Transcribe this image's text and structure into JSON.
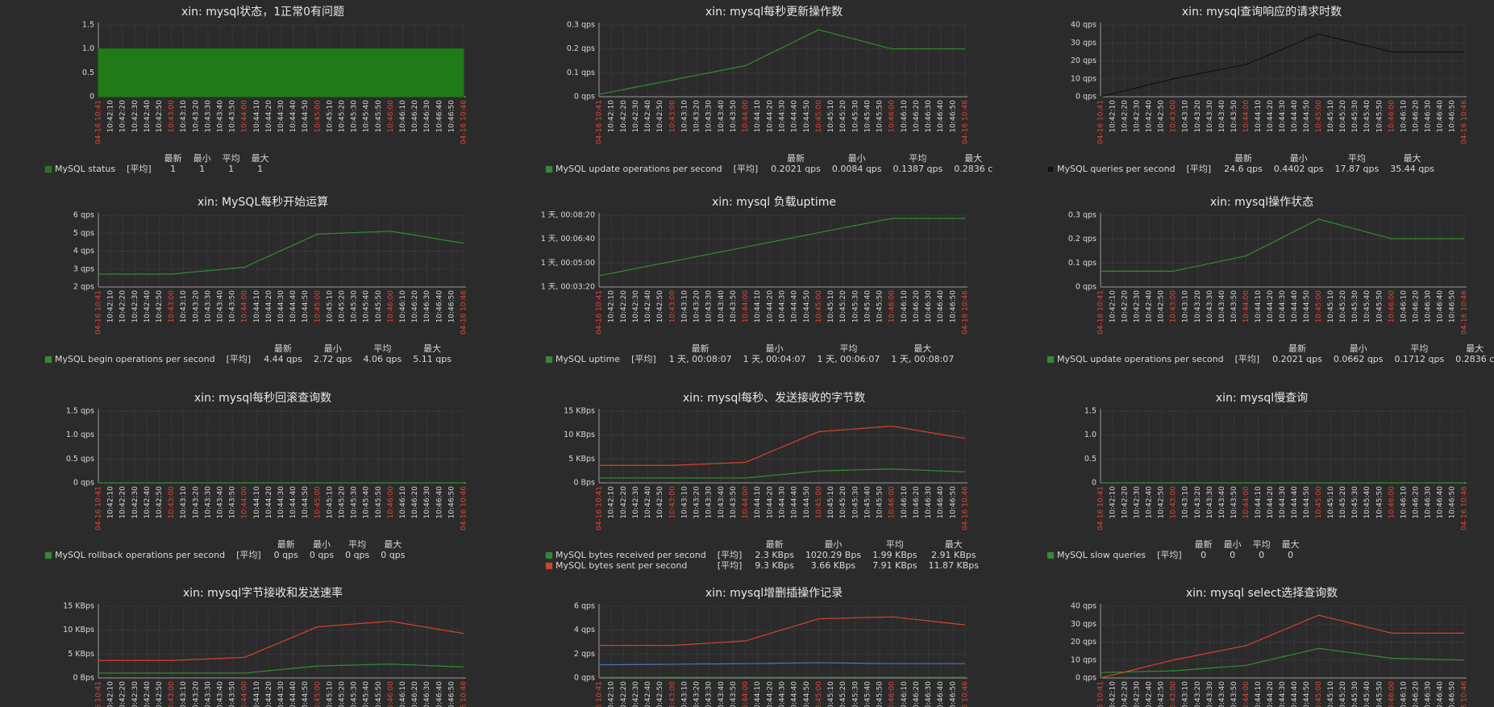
{
  "time_axis": [
    "04-16 10:41",
    "10:42:10",
    "10:42:20",
    "10:42:30",
    "10:42:40",
    "10:42:50",
    "10:43:00",
    "10:43:10",
    "10:43:20",
    "10:43:30",
    "10:43:40",
    "10:43:50",
    "10:44:00",
    "10:44:10",
    "10:44:20",
    "10:44:30",
    "10:44:40",
    "10:44:50",
    "10:45:00",
    "10:45:10",
    "10:45:20",
    "10:45:30",
    "10:45:40",
    "10:45:50",
    "10:46:00",
    "10:46:10",
    "10:46:20",
    "10:46:30",
    "10:46:40",
    "10:46:50",
    "04-16 10:46"
  ],
  "chart_data": [
    {
      "type": "area",
      "title": "xin: mysql状态，1正常0有问题",
      "ylim": [
        0,
        1.5
      ],
      "yticks": [
        0,
        0.5,
        {
          "value": 1,
          "label": "1.0"
        },
        {
          "value": 1.5,
          "label": "1.5"
        }
      ],
      "grid": true,
      "legend_headers": [
        "最新",
        "最小",
        "平均",
        "最大"
      ],
      "series": [
        {
          "name": "MySQL status",
          "color": "#1f7a17",
          "func": "[平均]",
          "stats": [
            "1",
            "1",
            "1",
            "1"
          ],
          "values": [
            1,
            1,
            1,
            1,
            1,
            1,
            1,
            1,
            1,
            1,
            1,
            1,
            1,
            1,
            1,
            1,
            1,
            1,
            1,
            1,
            1,
            1,
            1,
            1,
            1,
            1,
            1,
            1,
            1,
            1,
            1
          ]
        }
      ]
    },
    {
      "type": "line",
      "title": "xin: mysql每秒更新操作数",
      "ylim": [
        0,
        0.3
      ],
      "yticks": [
        {
          "value": 0,
          "label": "0 qps"
        },
        {
          "value": 0.1,
          "label": "0.1 qps"
        },
        {
          "value": 0.2,
          "label": "0.2 qps"
        },
        {
          "value": 0.3,
          "label": "0.3 qps"
        }
      ],
      "grid": true,
      "legend_headers": [
        "最新",
        "最小",
        "平均",
        "最大"
      ],
      "series": [
        {
          "name": "MySQL update operations per second",
          "color": "#2f8f2f",
          "func": "[平均]",
          "stats": [
            "0.2021 qps",
            "0.0084 qps",
            "0.1387 qps",
            "0.2836 c"
          ],
          "values": [
            0.01,
            0.02,
            0.03,
            0.04,
            0.05,
            0.06,
            0.07,
            0.08,
            0.09,
            0.1,
            0.11,
            0.12,
            0.13,
            0.155,
            0.18,
            0.205,
            0.23,
            0.255,
            0.28,
            0.267,
            0.253,
            0.24,
            0.227,
            0.213,
            0.2,
            0.2,
            0.2,
            0.2,
            0.2,
            0.2,
            0.2
          ]
        }
      ]
    },
    {
      "type": "line",
      "title": "xin: mysql查询响应的请求时数",
      "ylim": [
        0,
        40
      ],
      "yticks": [
        {
          "value": 0,
          "label": "0 qps"
        },
        {
          "value": 10,
          "label": "10 qps"
        },
        {
          "value": 20,
          "label": "20 qps"
        },
        {
          "value": 30,
          "label": "30 qps"
        },
        {
          "value": 40,
          "label": "40 qps"
        }
      ],
      "grid": true,
      "legend_headers": [
        "最新",
        "最小",
        "平均",
        "最大"
      ],
      "series": [
        {
          "name": "MySQL queries per second",
          "color": "#111111",
          "func": "[平均]",
          "stats": [
            "24.6 qps",
            "0.4402 qps",
            "17.87 qps",
            "35.44 qps"
          ],
          "values": [
            0,
            1.7,
            3.3,
            5,
            6.7,
            8.3,
            10,
            11.3,
            12.7,
            14,
            15.3,
            16.7,
            18,
            20.8,
            23.7,
            26.5,
            29.3,
            32.2,
            35,
            33.3,
            31.7,
            30,
            28.3,
            26.7,
            25,
            25,
            25,
            25,
            25,
            25,
            25
          ]
        }
      ]
    },
    {
      "type": "line",
      "title": "xin: MySQL每秒开始运算",
      "ylim": [
        2,
        6
      ],
      "yticks": [
        {
          "value": 2,
          "label": "2 qps"
        },
        {
          "value": 3,
          "label": "3 qps"
        },
        {
          "value": 4,
          "label": "4 qps"
        },
        {
          "value": 5,
          "label": "5 qps"
        },
        {
          "value": 6,
          "label": "6 qps"
        }
      ],
      "grid": true,
      "legend_headers": [
        "最新",
        "最小",
        "平均",
        "最大"
      ],
      "series": [
        {
          "name": "MySQL begin operations per second",
          "color": "#2f8f2f",
          "func": "[平均]",
          "stats": [
            "4.44 qps",
            "2.72 qps",
            "4.06 qps",
            "5.11 qps"
          ],
          "values": [
            2.72,
            2.72,
            2.72,
            2.72,
            2.72,
            2.72,
            2.72,
            2.78,
            2.85,
            2.91,
            2.97,
            3.04,
            3.1,
            3.41,
            3.72,
            4.03,
            4.33,
            4.64,
            4.95,
            4.98,
            5,
            5.03,
            5.06,
            5.08,
            5.11,
            5,
            4.89,
            4.78,
            4.66,
            4.55,
            4.44
          ]
        }
      ]
    },
    {
      "type": "line",
      "title": "xin: mysql 负载uptime",
      "ylim": [
        86600,
        86900
      ],
      "yticks": [
        {
          "value": 86600,
          "label": "1 天, 00:03:20"
        },
        {
          "value": 86700,
          "label": "1 天, 00:05:00"
        },
        {
          "value": 86800,
          "label": "1 天, 00:06:40"
        },
        {
          "value": 86900,
          "label": "1 天, 00:08:20"
        }
      ],
      "grid": true,
      "legend_headers": [
        "最新",
        "最小",
        "平均",
        "最大"
      ],
      "series": [
        {
          "name": "MySQL uptime",
          "color": "#2f8f2f",
          "func": "[平均]",
          "stats": [
            "1 天, 00:08:07",
            "1 天, 00:04:07",
            "1 天, 00:06:07",
            "1 天, 00:08:07"
          ],
          "values": [
            86647,
            86657,
            86667,
            86677,
            86687,
            86697,
            86707,
            86717,
            86727,
            86737,
            86747,
            86757,
            86767,
            86777,
            86787,
            86797,
            86807,
            86817,
            86827,
            86837,
            86847,
            86857,
            86867,
            86877,
            86887,
            86887,
            86887,
            86887,
            86887,
            86887,
            86887
          ]
        }
      ]
    },
    {
      "type": "line",
      "title": "xin: mysql操作状态",
      "ylim": [
        0,
        0.3
      ],
      "yticks": [
        {
          "value": 0,
          "label": "0 qps"
        },
        {
          "value": 0.1,
          "label": "0.1 qps"
        },
        {
          "value": 0.2,
          "label": "0.2 qps"
        },
        {
          "value": 0.3,
          "label": "0.3 qps"
        }
      ],
      "grid": true,
      "legend_headers": [
        "最新",
        "最小",
        "平均",
        "最大"
      ],
      "series": [
        {
          "name": "MySQL update operations per second",
          "color": "#2f8f2f",
          "func": "[平均]",
          "stats": [
            "0.2021 qps",
            "0.0662 qps",
            "0.1712 qps",
            "0.2836 c"
          ],
          "values": [
            0.0662,
            0.0662,
            0.0662,
            0.0662,
            0.0662,
            0.0662,
            0.0662,
            0.077,
            0.087,
            0.098,
            0.109,
            0.119,
            0.13,
            0.156,
            0.181,
            0.207,
            0.233,
            0.258,
            0.2836,
            0.27,
            0.256,
            0.243,
            0.229,
            0.216,
            0.2021,
            0.2021,
            0.2021,
            0.2021,
            0.2021,
            0.2021,
            0.2021
          ]
        }
      ]
    },
    {
      "type": "line",
      "title": "xin: mysql每秒回滚查询数",
      "ylim": [
        0,
        1.5
      ],
      "yticks": [
        {
          "value": 0,
          "label": "0 qps"
        },
        {
          "value": 0.5,
          "label": "0.5 qps"
        },
        {
          "value": 1,
          "label": "1.0 qps"
        },
        {
          "value": 1.5,
          "label": "1.5 qps"
        }
      ],
      "grid": true,
      "legend_headers": [
        "最新",
        "最小",
        "平均",
        "最大"
      ],
      "series": [
        {
          "name": "MySQL rollback operations per second",
          "color": "#2f8f2f",
          "func": "[平均]",
          "stats": [
            "0 qps",
            "0 qps",
            "0 qps",
            "0 qps"
          ],
          "values": [
            0,
            0,
            0,
            0,
            0,
            0,
            0,
            0,
            0,
            0,
            0,
            0,
            0,
            0,
            0,
            0,
            0,
            0,
            0,
            0,
            0,
            0,
            0,
            0,
            0,
            0,
            0,
            0,
            0,
            0,
            0
          ]
        }
      ]
    },
    {
      "type": "line",
      "title": "xin: mysql每秒、发送接收的字节数",
      "ylim": [
        0,
        15000
      ],
      "yticks": [
        {
          "value": 0,
          "label": "0 Bps"
        },
        {
          "value": 5000,
          "label": "5 KBps"
        },
        {
          "value": 10000,
          "label": "10 KBps"
        },
        {
          "value": 15000,
          "label": "15 KBps"
        }
      ],
      "grid": true,
      "legend_headers": [
        "最新",
        "最小",
        "平均",
        "最大"
      ],
      "series": [
        {
          "name": "MySQL bytes received per second",
          "color": "#2f8f2f",
          "func": "[平均]",
          "stats": [
            "2.3 KBps",
            "1020.29 Bps",
            "1.99 KBps",
            "2.91 KBps"
          ],
          "values": [
            1020,
            1020,
            1020,
            1020,
            1020,
            1020,
            1020,
            1020,
            1020,
            1020,
            1020,
            1020,
            1020,
            1267,
            1513,
            1760,
            2007,
            2253,
            2500,
            2568,
            2637,
            2705,
            2773,
            2842,
            2910,
            2808,
            2707,
            2605,
            2503,
            2402,
            2300
          ]
        },
        {
          "name": "MySQL bytes sent per second",
          "color": "#d9412c",
          "func": "[平均]",
          "stats": [
            "9.3 KBps",
            "3.66 KBps",
            "7.91 KBps",
            "11.87 KBps"
          ],
          "values": [
            3660,
            3660,
            3660,
            3660,
            3660,
            3660,
            3660,
            3767,
            3873,
            3980,
            4087,
            4193,
            4300,
            5367,
            6433,
            7500,
            8567,
            9633,
            10700,
            10895,
            11090,
            11285,
            11480,
            11675,
            11870,
            11442,
            11013,
            10585,
            10157,
            9728,
            9300
          ]
        }
      ]
    },
    {
      "type": "line",
      "title": "xin: mysql慢查询",
      "ylim": [
        0,
        1.5
      ],
      "yticks": [
        0,
        0.5,
        {
          "value": 1,
          "label": "1.0"
        },
        {
          "value": 1.5,
          "label": "1.5"
        }
      ],
      "grid": true,
      "legend_headers": [
        "最新",
        "最小",
        "平均",
        "最大"
      ],
      "series": [
        {
          "name": "MySQL slow queries",
          "color": "#2f8f2f",
          "func": "[平均]",
          "stats": [
            "0",
            "0",
            "0",
            "0"
          ],
          "values": [
            0,
            0,
            0,
            0,
            0,
            0,
            0,
            0,
            0,
            0,
            0,
            0,
            0,
            0,
            0,
            0,
            0,
            0,
            0,
            0,
            0,
            0,
            0,
            0,
            0,
            0,
            0,
            0,
            0,
            0,
            0
          ]
        }
      ]
    },
    {
      "type": "line",
      "title": "xin: mysql字节接收和发送速率",
      "ylim": [
        0,
        15000
      ],
      "yticks": [
        {
          "value": 0,
          "label": "0 Bps"
        },
        {
          "value": 5000,
          "label": "5 KBps"
        },
        {
          "value": 10000,
          "label": "10 KBps"
        },
        {
          "value": 15000,
          "label": "15 KBps"
        }
      ],
      "grid": true,
      "series": [
        {
          "color": "#2f8f2f",
          "values": [
            1020,
            1020,
            1020,
            1020,
            1020,
            1020,
            1020,
            1020,
            1020,
            1020,
            1020,
            1020,
            1020,
            1267,
            1513,
            1760,
            2007,
            2253,
            2500,
            2568,
            2637,
            2705,
            2773,
            2842,
            2910,
            2808,
            2707,
            2605,
            2503,
            2402,
            2300
          ]
        },
        {
          "color": "#d9412c",
          "values": [
            3660,
            3660,
            3660,
            3660,
            3660,
            3660,
            3660,
            3767,
            3873,
            3980,
            4087,
            4193,
            4300,
            5367,
            6433,
            7500,
            8567,
            9633,
            10700,
            10895,
            11090,
            11285,
            11480,
            11675,
            11870,
            11442,
            11013,
            10585,
            10157,
            9728,
            9300
          ]
        }
      ]
    },
    {
      "type": "line",
      "title": "xin: mysql增删插操作记录",
      "ylim": [
        0,
        6
      ],
      "yticks": [
        {
          "value": 0,
          "label": "0 qps"
        },
        {
          "value": 2,
          "label": "2 qps"
        },
        {
          "value": 4,
          "label": "4 qps"
        },
        {
          "value": 6,
          "label": "6 qps"
        }
      ],
      "grid": true,
      "series": [
        {
          "color": "#2f8f2f",
          "values": [
            0.05,
            0.05,
            0.05,
            0.05,
            0.05,
            0.05,
            0.05,
            0.05,
            0.05,
            0.05,
            0.05,
            0.05,
            0.05,
            0.05,
            0.05,
            0.05,
            0.05,
            0.05,
            0.05,
            0.05,
            0.05,
            0.05,
            0.05,
            0.05,
            0.05,
            0.05,
            0.05,
            0.05,
            0.05,
            0.05,
            0.05
          ]
        },
        {
          "color": "#4a78b0",
          "values": [
            1.1,
            1.11,
            1.12,
            1.12,
            1.13,
            1.14,
            1.15,
            1.16,
            1.17,
            1.17,
            1.18,
            1.19,
            1.2,
            1.21,
            1.22,
            1.24,
            1.25,
            1.26,
            1.27,
            1.26,
            1.25,
            1.24,
            1.22,
            1.21,
            1.2,
            1.2,
            1.2,
            1.2,
            1.2,
            1.2,
            1.2
          ]
        },
        {
          "color": "#d9412c",
          "values": [
            2.72,
            2.72,
            2.72,
            2.72,
            2.72,
            2.72,
            2.72,
            2.78,
            2.85,
            2.91,
            2.97,
            3.04,
            3.1,
            3.41,
            3.72,
            4.03,
            4.33,
            4.64,
            4.95,
            4.98,
            5,
            5.03,
            5.06,
            5.08,
            5.11,
            5,
            4.89,
            4.78,
            4.66,
            4.55,
            4.44
          ]
        }
      ]
    },
    {
      "type": "line",
      "title": "xin: mysql select选择查询数",
      "ylim": [
        0,
        40
      ],
      "yticks": [
        {
          "value": 0,
          "label": "0 qps"
        },
        {
          "value": 10,
          "label": "10 qps"
        },
        {
          "value": 20,
          "label": "20 qps"
        },
        {
          "value": 30,
          "label": "30 qps"
        },
        {
          "value": 40,
          "label": "40 qps"
        }
      ],
      "grid": true,
      "series": [
        {
          "color": "#2f8f2f",
          "values": [
            3,
            3.2,
            3.3,
            3.5,
            3.7,
            3.8,
            4,
            4.5,
            5,
            5.5,
            6,
            6.5,
            7,
            8.6,
            10.2,
            11.8,
            13.3,
            14.9,
            16.5,
            15.6,
            14.7,
            13.8,
            12.8,
            11.9,
            11,
            10.8,
            10.7,
            10.5,
            10.3,
            10.2,
            10
          ]
        },
        {
          "color": "#d9412c",
          "values": [
            0,
            1.7,
            3.3,
            5,
            6.7,
            8.3,
            10,
            11.3,
            12.7,
            14,
            15.3,
            16.7,
            18,
            20.8,
            23.7,
            26.5,
            29.3,
            32.2,
            35,
            33.3,
            31.7,
            30,
            28.3,
            26.7,
            25,
            25,
            25,
            25,
            25,
            25,
            25
          ]
        }
      ]
    }
  ]
}
